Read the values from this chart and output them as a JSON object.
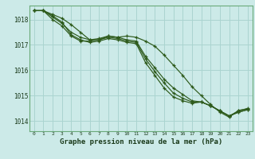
{
  "title": "Graphe pression niveau de la mer (hPa)",
  "bg_color": "#cceae8",
  "grid_color": "#aad4d0",
  "line_color": "#2d5a1b",
  "spine_color": "#6aaa7a",
  "xlim": [
    -0.5,
    23.5
  ],
  "ylim": [
    1013.6,
    1018.55
  ],
  "yticks": [
    1014,
    1015,
    1016,
    1017,
    1018
  ],
  "xticks": [
    0,
    1,
    2,
    3,
    4,
    5,
    6,
    7,
    8,
    9,
    10,
    11,
    12,
    13,
    14,
    15,
    16,
    17,
    18,
    19,
    20,
    21,
    22,
    23
  ],
  "series": [
    [
      1018.35,
      1018.35,
      1018.2,
      1018.05,
      1017.8,
      1017.5,
      1017.2,
      1017.2,
      1017.35,
      1017.3,
      1017.35,
      1017.3,
      1017.15,
      1016.95,
      1016.6,
      1016.2,
      1015.8,
      1015.35,
      1015.0,
      1014.65,
      1014.35,
      1014.15,
      1014.42,
      1014.48
    ],
    [
      1018.35,
      1018.35,
      1018.1,
      1017.85,
      1017.5,
      1017.3,
      1017.2,
      1017.25,
      1017.35,
      1017.3,
      1017.2,
      1017.15,
      1016.55,
      1016.1,
      1015.65,
      1015.3,
      1015.05,
      1014.8,
      1014.75,
      1014.6,
      1014.4,
      1014.2,
      1014.4,
      1014.5
    ],
    [
      1018.35,
      1018.35,
      1018.0,
      1017.75,
      1017.35,
      1017.15,
      1017.15,
      1017.2,
      1017.3,
      1017.25,
      1017.15,
      1017.1,
      1016.45,
      1015.95,
      1015.5,
      1015.1,
      1014.9,
      1014.75,
      1014.75,
      1014.6,
      1014.4,
      1014.2,
      1014.35,
      1014.45
    ],
    [
      1018.35,
      1018.35,
      1018.15,
      1017.9,
      1017.4,
      1017.2,
      1017.1,
      1017.15,
      1017.25,
      1017.2,
      1017.1,
      1017.05,
      1016.3,
      1015.8,
      1015.3,
      1014.95,
      1014.8,
      1014.7,
      1014.75,
      1014.6,
      1014.4,
      1014.2,
      1014.35,
      1014.45
    ]
  ],
  "ylabel_fontsize": 5.5,
  "xlabel_fontsize": 4.5,
  "title_fontsize": 6.5
}
